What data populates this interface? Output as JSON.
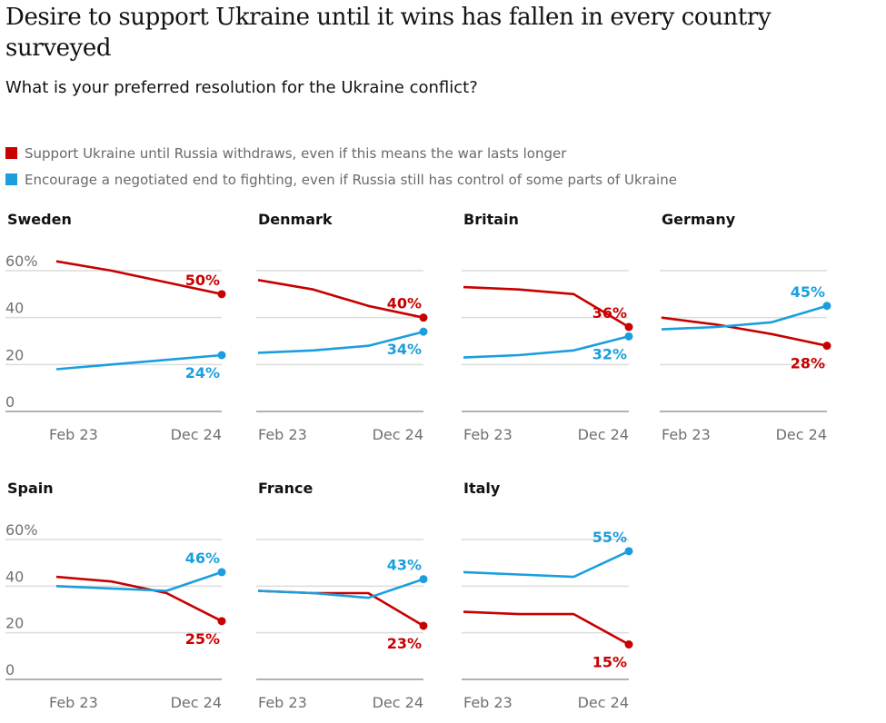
{
  "title": "Desire to support Ukraine until it wins has fallen in every country surveyed",
  "subtitle": "What is your preferred resolution for the Ukraine conflict?",
  "legend": [
    {
      "label": "Support Ukraine until Russia withdraws, even if this means the war lasts longer",
      "color": "#c70000"
    },
    {
      "label": "Encourage a negotiated end to fighting, even if Russia still has control of some parts of Ukraine",
      "color": "#1b9ede"
    }
  ],
  "chart_data": {
    "type": "line",
    "x": [
      "Feb 23",
      "Dec 24"
    ],
    "ylim": [
      0,
      60
    ],
    "y_ticks": [
      "60%",
      "40",
      "20",
      "0"
    ],
    "grid": true,
    "series_colors": {
      "support": "#c70000",
      "negotiate": "#1b9ede"
    },
    "panels": [
      {
        "country": "Sweden",
        "support": [
          64,
          60,
          55,
          50
        ],
        "negotiate": [
          18,
          20,
          22,
          24
        ],
        "support_label": "50%",
        "negotiate_label": "24%"
      },
      {
        "country": "Denmark",
        "support": [
          56,
          52,
          45,
          40
        ],
        "negotiate": [
          25,
          26,
          28,
          34
        ],
        "support_label": "40%",
        "negotiate_label": "34%"
      },
      {
        "country": "Britain",
        "support": [
          53,
          52,
          50,
          36
        ],
        "negotiate": [
          23,
          24,
          26,
          32
        ],
        "support_label": "36%",
        "negotiate_label": "32%"
      },
      {
        "country": "Germany",
        "support": [
          40,
          37,
          33,
          28
        ],
        "negotiate": [
          35,
          36,
          38,
          45
        ],
        "support_label": "28%",
        "negotiate_label": "45%"
      },
      {
        "country": "Spain",
        "support": [
          44,
          42,
          37,
          25
        ],
        "negotiate": [
          40,
          39,
          38,
          46
        ],
        "support_label": "25%",
        "negotiate_label": "46%"
      },
      {
        "country": "France",
        "support": [
          38,
          37,
          37,
          23
        ],
        "negotiate": [
          38,
          37,
          35,
          43
        ],
        "support_label": "23%",
        "negotiate_label": "43%"
      },
      {
        "country": "Italy",
        "support": [
          29,
          28,
          28,
          15
        ],
        "negotiate": [
          46,
          45,
          44,
          55
        ],
        "support_label": "15%",
        "negotiate_label": "55%"
      }
    ]
  }
}
